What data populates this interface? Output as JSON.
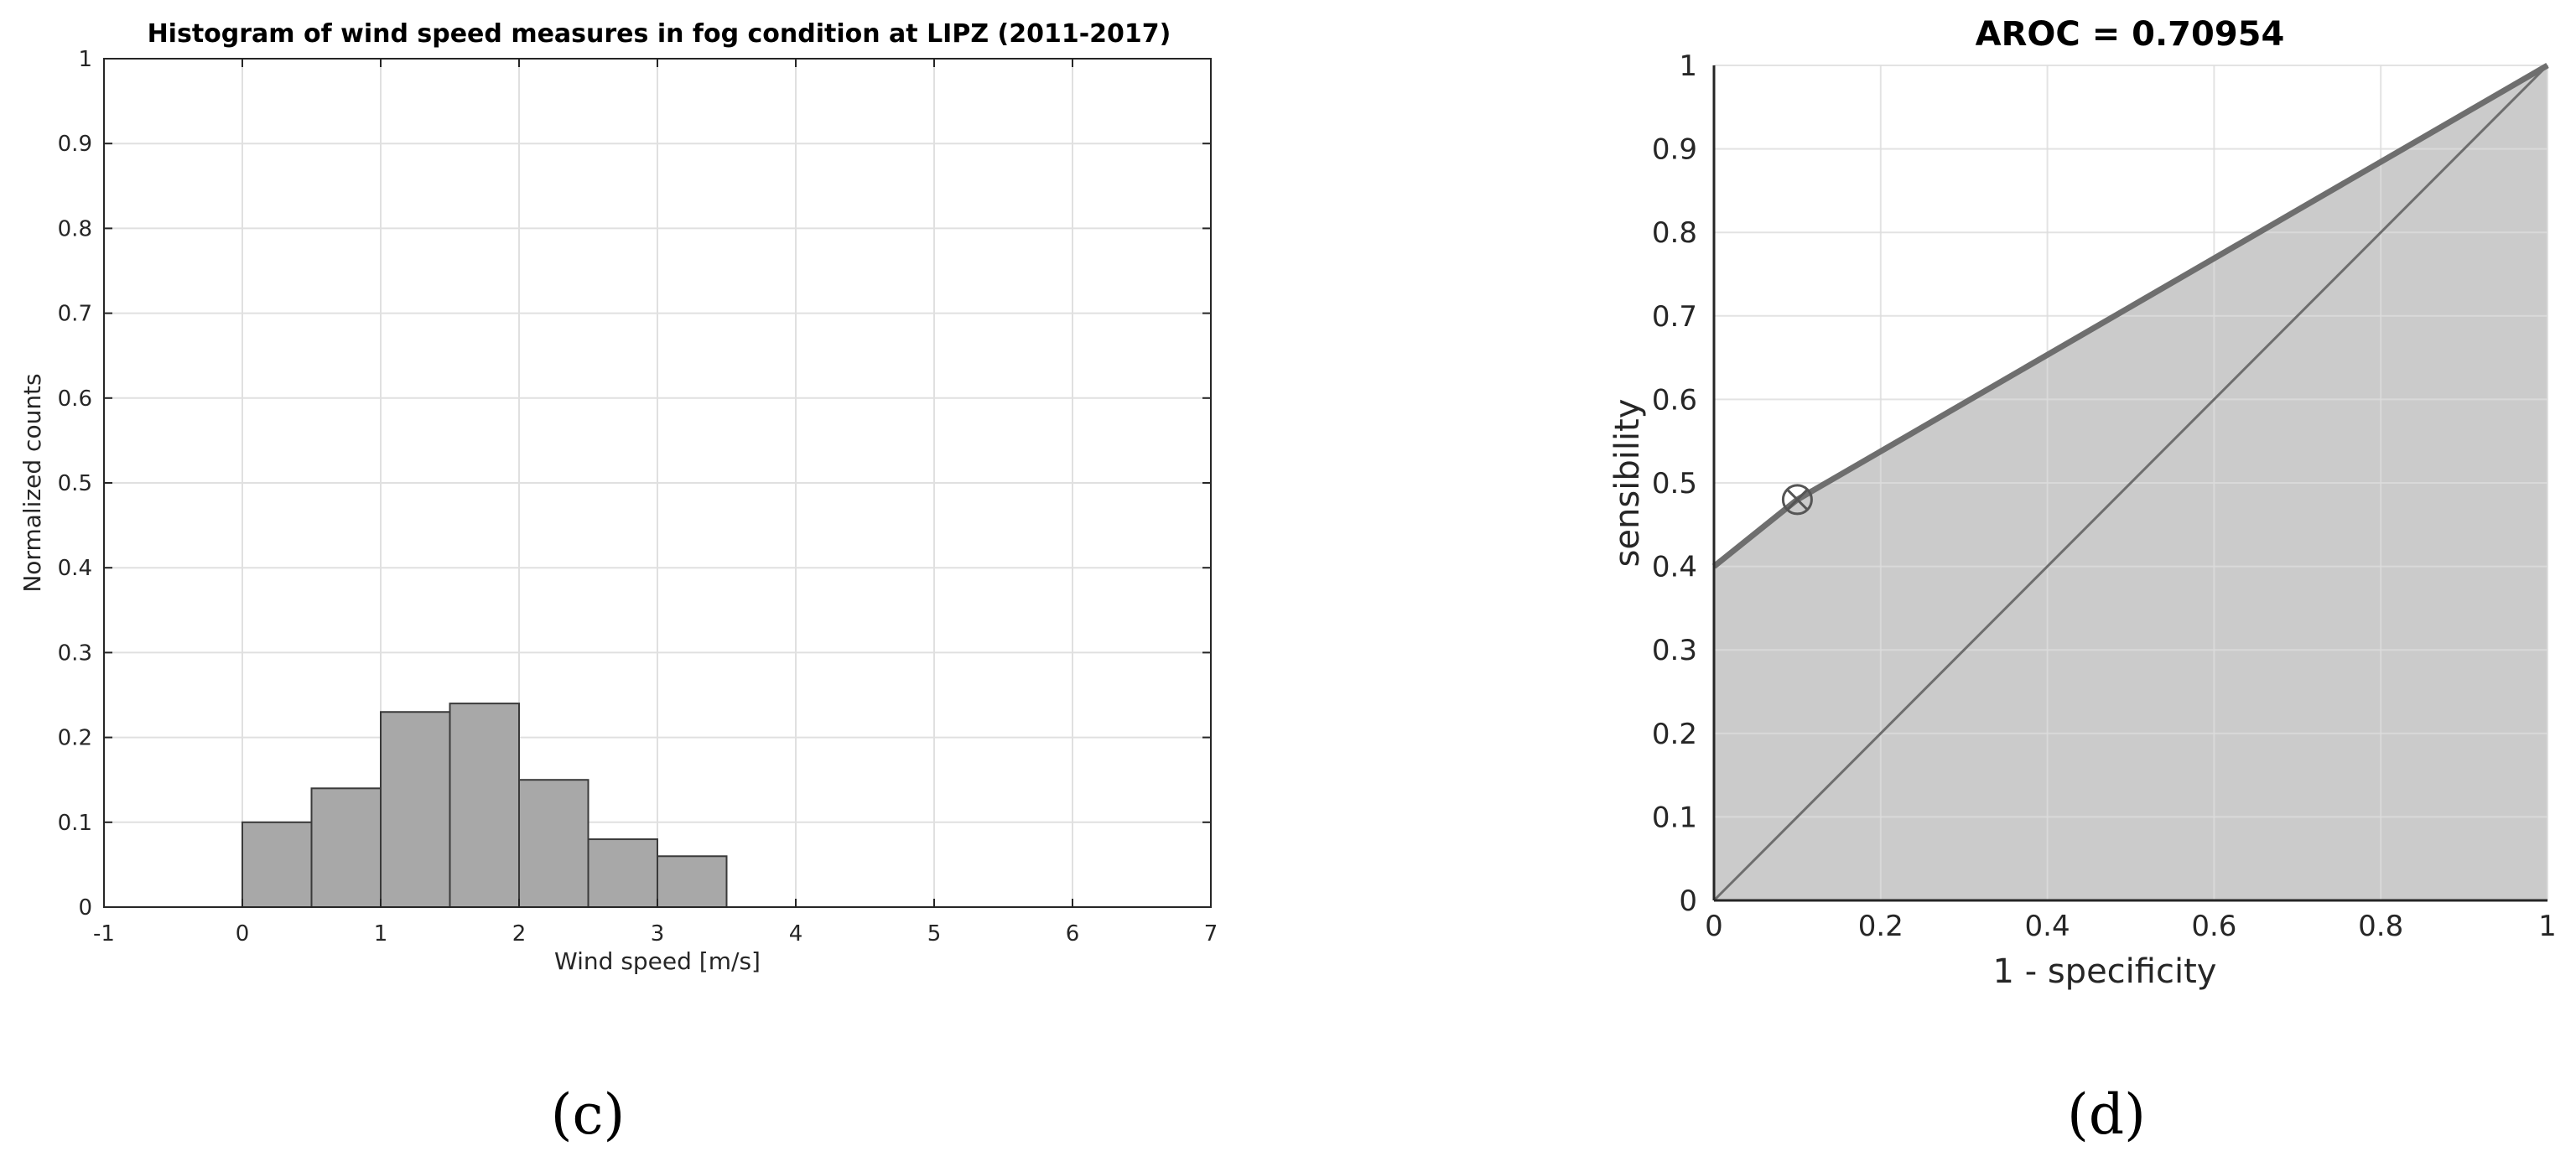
{
  "chart_data": [
    {
      "type": "bar",
      "title": "Histogram of wind speed measures in fog condition at LIPZ (2011-2017)",
      "xlabel": "Wind speed [m/s]",
      "ylabel": "Normalized counts",
      "xlim": [
        -1,
        7
      ],
      "ylim": [
        0,
        1
      ],
      "xticks": [
        "-1",
        "0",
        "1",
        "2",
        "3",
        "4",
        "5",
        "6",
        "7"
      ],
      "yticks": [
        "0",
        "0.1",
        "0.2",
        "0.3",
        "0.4",
        "0.5",
        "0.6",
        "0.7",
        "0.8",
        "0.9",
        "1"
      ],
      "bin_edges": [
        0,
        0.5,
        1,
        1.5,
        2,
        2.5,
        3,
        3.5
      ],
      "values": [
        0.1,
        0.14,
        0.23,
        0.24,
        0.15,
        0.08,
        0.06
      ],
      "grid": true,
      "bar_color": "#a8a8a8",
      "panel_label": "(c)"
    },
    {
      "type": "area",
      "title": "AROC = 0.70954",
      "xlabel": "1 - specificity",
      "ylabel": "sensibility",
      "xlim": [
        0,
        1
      ],
      "ylim": [
        0,
        1
      ],
      "xticks": [
        "0",
        "0.2",
        "0.4",
        "0.6",
        "0.8",
        "1"
      ],
      "yticks": [
        "0",
        "0.1",
        "0.2",
        "0.3",
        "0.4",
        "0.5",
        "0.6",
        "0.7",
        "0.8",
        "0.9",
        "1"
      ],
      "series": [
        {
          "x": [
            0,
            0.1,
            1
          ],
          "y": [
            0.4,
            0.48,
            1
          ]
        }
      ],
      "diagonal": true,
      "marker": {
        "x": 0.1,
        "y": 0.48
      },
      "grid": true,
      "fill_color": "#cbcbcb",
      "panel_label": "(d)"
    }
  ]
}
